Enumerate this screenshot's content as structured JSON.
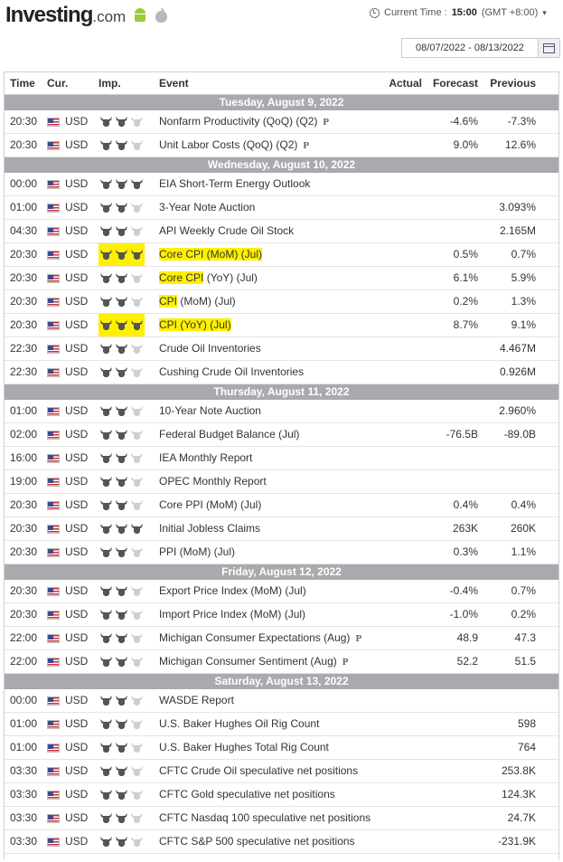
{
  "header": {
    "brand": "Investing",
    "tld": ".com",
    "current_time_label": "Current Time :",
    "current_time": "15:00",
    "timezone": "(GMT +8:00)",
    "date_range": "08/07/2022 - 08/13/2022"
  },
  "columns": {
    "time": "Time",
    "currency": "Cur.",
    "importance": "Imp.",
    "event": "Event",
    "actual": "Actual",
    "forecast": "Forecast",
    "previous": "Previous"
  },
  "days": [
    {
      "label": "Tuesday, August 9, 2022",
      "events": [
        {
          "time": "20:30",
          "cur": "USD",
          "imp": 2,
          "event": "Nonfarm Productivity (QoQ) (Q2)",
          "pre": "P",
          "actual": "",
          "forecast": "-4.6%",
          "previous": "-7.3%"
        },
        {
          "time": "20:30",
          "cur": "USD",
          "imp": 2,
          "event": "Unit Labor Costs (QoQ) (Q2)",
          "pre": "P",
          "actual": "",
          "forecast": "9.0%",
          "previous": "12.6%"
        }
      ]
    },
    {
      "label": "Wednesday, August 10, 2022",
      "events": [
        {
          "time": "00:00",
          "cur": "USD",
          "imp": 3,
          "event": "EIA Short-Term Energy Outlook",
          "actual": "",
          "forecast": "",
          "previous": ""
        },
        {
          "time": "01:00",
          "cur": "USD",
          "imp": 2,
          "event": "3-Year Note Auction",
          "actual": "",
          "forecast": "",
          "previous": "3.093%"
        },
        {
          "time": "04:30",
          "cur": "USD",
          "imp": 2,
          "event": "API Weekly Crude Oil Stock",
          "actual": "",
          "forecast": "",
          "previous": "2.165M"
        },
        {
          "time": "20:30",
          "cur": "USD",
          "imp": 3,
          "event": "Core CPI (MoM) (Jul)",
          "hl": "full",
          "actual": "",
          "forecast": "0.5%",
          "previous": "0.7%"
        },
        {
          "time": "20:30",
          "cur": "USD",
          "imp": 2,
          "event": "Core CPI (YoY) (Jul)",
          "hl_part": "Core CPI",
          "actual": "",
          "forecast": "6.1%",
          "previous": "5.9%"
        },
        {
          "time": "20:30",
          "cur": "USD",
          "imp": 2,
          "event": "CPI (MoM) (Jul)",
          "hl_part": "CPI",
          "actual": "",
          "forecast": "0.2%",
          "previous": "1.3%"
        },
        {
          "time": "20:30",
          "cur": "USD",
          "imp": 3,
          "event": "CPI (YoY) (Jul)",
          "hl": "full",
          "actual": "",
          "forecast": "8.7%",
          "previous": "9.1%"
        },
        {
          "time": "22:30",
          "cur": "USD",
          "imp": 2,
          "event": "Crude Oil Inventories",
          "actual": "",
          "forecast": "",
          "previous": "4.467M"
        },
        {
          "time": "22:30",
          "cur": "USD",
          "imp": 2,
          "event": "Cushing Crude Oil Inventories",
          "actual": "",
          "forecast": "",
          "previous": "0.926M"
        }
      ]
    },
    {
      "label": "Thursday, August 11, 2022",
      "events": [
        {
          "time": "01:00",
          "cur": "USD",
          "imp": 2,
          "event": "10-Year Note Auction",
          "actual": "",
          "forecast": "",
          "previous": "2.960%"
        },
        {
          "time": "02:00",
          "cur": "USD",
          "imp": 2,
          "event": "Federal Budget Balance (Jul)",
          "actual": "",
          "forecast": "-76.5B",
          "previous": "-89.0B"
        },
        {
          "time": "16:00",
          "cur": "USD",
          "imp": 2,
          "event": "IEA Monthly Report",
          "actual": "",
          "forecast": "",
          "previous": ""
        },
        {
          "time": "19:00",
          "cur": "USD",
          "imp": 2,
          "event": "OPEC Monthly Report",
          "actual": "",
          "forecast": "",
          "previous": ""
        },
        {
          "time": "20:30",
          "cur": "USD",
          "imp": 2,
          "event": "Core PPI (MoM) (Jul)",
          "actual": "",
          "forecast": "0.4%",
          "previous": "0.4%"
        },
        {
          "time": "20:30",
          "cur": "USD",
          "imp": 3,
          "event": "Initial Jobless Claims",
          "actual": "",
          "forecast": "263K",
          "previous": "260K"
        },
        {
          "time": "20:30",
          "cur": "USD",
          "imp": 2,
          "event": "PPI (MoM) (Jul)",
          "actual": "",
          "forecast": "0.3%",
          "previous": "1.1%"
        }
      ]
    },
    {
      "label": "Friday, August 12, 2022",
      "events": [
        {
          "time": "20:30",
          "cur": "USD",
          "imp": 2,
          "event": "Export Price Index (MoM) (Jul)",
          "actual": "",
          "forecast": "-0.4%",
          "previous": "0.7%"
        },
        {
          "time": "20:30",
          "cur": "USD",
          "imp": 2,
          "event": "Import Price Index (MoM) (Jul)",
          "actual": "",
          "forecast": "-1.0%",
          "previous": "0.2%"
        },
        {
          "time": "22:00",
          "cur": "USD",
          "imp": 2,
          "event": "Michigan Consumer Expectations (Aug)",
          "pre": "P",
          "actual": "",
          "forecast": "48.9",
          "previous": "47.3"
        },
        {
          "time": "22:00",
          "cur": "USD",
          "imp": 2,
          "event": "Michigan Consumer Sentiment (Aug)",
          "pre": "P",
          "actual": "",
          "forecast": "52.2",
          "previous": "51.5"
        }
      ]
    },
    {
      "label": "Saturday, August 13, 2022",
      "events": [
        {
          "time": "00:00",
          "cur": "USD",
          "imp": 2,
          "event": "WASDE Report",
          "actual": "",
          "forecast": "",
          "previous": ""
        },
        {
          "time": "01:00",
          "cur": "USD",
          "imp": 2,
          "event": "U.S. Baker Hughes Oil Rig Count",
          "actual": "",
          "forecast": "",
          "previous": "598"
        },
        {
          "time": "01:00",
          "cur": "USD",
          "imp": 2,
          "event": "U.S. Baker Hughes Total Rig Count",
          "actual": "",
          "forecast": "",
          "previous": "764"
        },
        {
          "time": "03:30",
          "cur": "USD",
          "imp": 2,
          "event": "CFTC Crude Oil speculative net positions",
          "actual": "",
          "forecast": "",
          "previous": "253.8K"
        },
        {
          "time": "03:30",
          "cur": "USD",
          "imp": 2,
          "event": "CFTC Gold speculative net positions",
          "actual": "",
          "forecast": "",
          "previous": "124.3K"
        },
        {
          "time": "03:30",
          "cur": "USD",
          "imp": 2,
          "event": "CFTC Nasdaq 100 speculative net positions",
          "actual": "",
          "forecast": "",
          "previous": "24.7K"
        },
        {
          "time": "03:30",
          "cur": "USD",
          "imp": 2,
          "event": "CFTC S&P 500 speculative net positions",
          "actual": "",
          "forecast": "",
          "previous": "-231.9K"
        }
      ]
    }
  ],
  "icons": {
    "android": "android-icon",
    "apple": "apple-icon",
    "clock": "clock-icon",
    "calendar": "calendar-icon",
    "flag": "us-flag-icon",
    "bull": "bull-icon"
  },
  "colors": {
    "highlight": "#fff000",
    "day_bar": "#a8aaae",
    "bull_on": "#555555",
    "bull_off": "#cfcfcf"
  }
}
